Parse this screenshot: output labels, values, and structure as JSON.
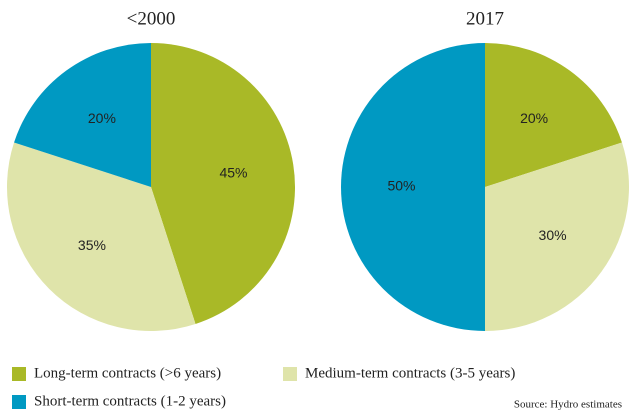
{
  "chart_data": [
    {
      "type": "pie",
      "title": "<2000",
      "categories": [
        "Long-term contracts (>6 years)",
        "Medium-term contracts (3-5 years)",
        "Short-term contracts (1-2 years)"
      ],
      "values": [
        45,
        35,
        20
      ],
      "value_labels": [
        "45%",
        "35%",
        "20%"
      ],
      "colors": [
        "#a9b927",
        "#dfe4aa",
        "#0099c2"
      ]
    },
    {
      "type": "pie",
      "title": "2017",
      "categories": [
        "Long-term contracts (>6 years)",
        "Medium-term contracts (3-5 years)",
        "Short-term contracts (1-2 years)"
      ],
      "values": [
        20,
        30,
        50
      ],
      "value_labels": [
        "20%",
        "30%",
        "50%"
      ],
      "colors": [
        "#a9b927",
        "#dfe4aa",
        "#0099c2"
      ]
    }
  ],
  "source": "Source: Hydro estimates"
}
